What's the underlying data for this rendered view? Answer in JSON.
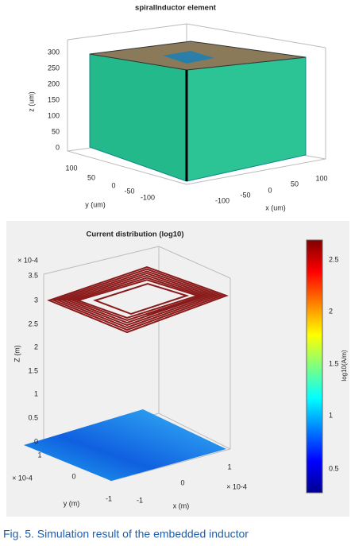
{
  "top": {
    "title": "spiralInductor element",
    "zlabel": "z (um)",
    "ylabel": "y (um)",
    "xlabel": "x (um)",
    "zticks": [
      "300",
      "250",
      "200",
      "150",
      "100",
      "50",
      "0"
    ],
    "yticks": [
      "100",
      "50",
      "0",
      "-50",
      "-100"
    ],
    "xticks": [
      "-100",
      "-50",
      "0",
      "50",
      "100"
    ]
  },
  "bottom": {
    "title": "Current distribution (log10)",
    "zexp": "× 10-4",
    "zlabel": "Z (m)",
    "ylabel": "y (m)",
    "xlabel": "x (m)",
    "zticks": [
      "3.5",
      "3",
      "2.5",
      "2",
      "1.5",
      "1",
      "0.5",
      "0"
    ],
    "yticks": [
      "1",
      "0",
      "-1"
    ],
    "yexp": "× 10-4",
    "xticks": [
      "-1",
      "0",
      "1"
    ],
    "xexp": "× 10-4",
    "cticks": [
      "2.5",
      "2",
      "1.5",
      "1",
      "0.5"
    ],
    "clabel": "log10(A/m)"
  },
  "caption": "Fig. 5.  Simulation result of the embedded inductor"
}
